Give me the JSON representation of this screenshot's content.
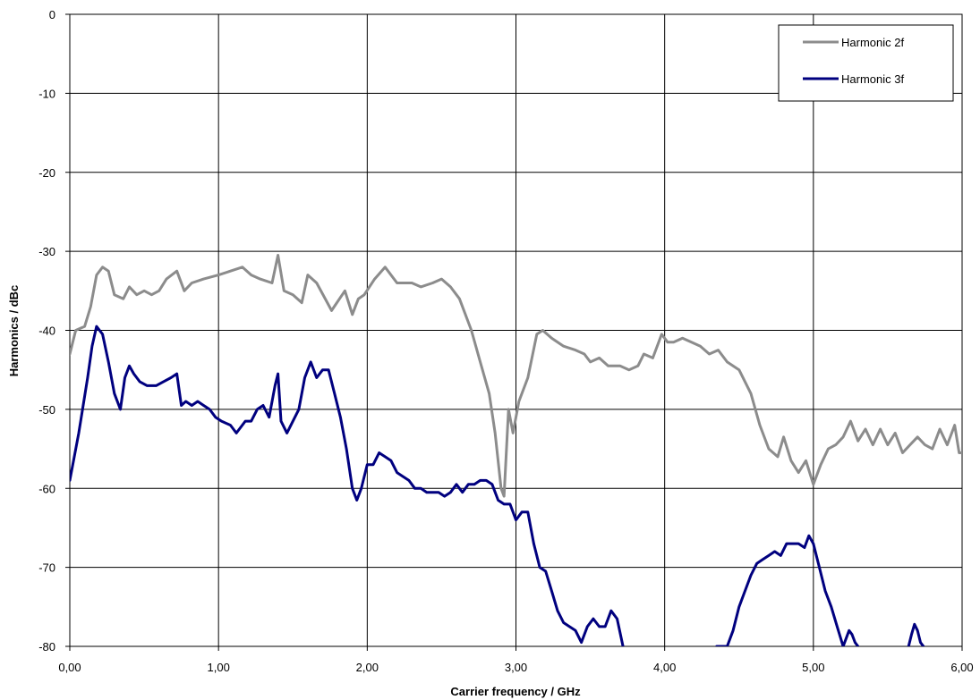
{
  "chart_data": {
    "type": "line",
    "xlabel": "Carrier frequency / GHz",
    "ylabel": "Harmonics / dBc",
    "xlim": [
      0,
      6
    ],
    "ylim": [
      -80,
      0
    ],
    "x_ticks": [
      "0,00",
      "1,00",
      "2,00",
      "3,00",
      "4,00",
      "5,00",
      "6,00"
    ],
    "y_ticks": [
      "0",
      "-10",
      "-20",
      "-30",
      "-40",
      "-50",
      "-60",
      "-70",
      "-80"
    ],
    "grid": true,
    "legend_position": "top-right",
    "series": [
      {
        "name": "Harmonic 2f",
        "color": "#8c8c8c",
        "x": [
          0,
          0.04,
          0.1,
          0.14,
          0.18,
          0.22,
          0.26,
          0.3,
          0.36,
          0.4,
          0.45,
          0.5,
          0.55,
          0.6,
          0.65,
          0.72,
          0.77,
          0.82,
          0.9,
          1.0,
          1.08,
          1.16,
          1.22,
          1.28,
          1.36,
          1.4,
          1.44,
          1.5,
          1.56,
          1.6,
          1.66,
          1.76,
          1.85,
          1.9,
          1.94,
          1.98,
          2.05,
          2.12,
          2.2,
          2.3,
          2.36,
          2.44,
          2.5,
          2.56,
          2.62,
          2.7,
          2.76,
          2.82,
          2.86,
          2.9,
          2.92,
          2.95,
          2.98,
          3.02,
          3.08,
          3.14,
          3.18,
          3.24,
          3.32,
          3.4,
          3.46,
          3.5,
          3.56,
          3.62,
          3.7,
          3.76,
          3.82,
          3.86,
          3.92,
          3.98,
          4.02,
          4.06,
          4.12,
          4.18,
          4.24,
          4.3,
          4.36,
          4.42,
          4.5,
          4.58,
          4.64,
          4.7,
          4.76,
          4.8,
          4.85,
          4.9,
          4.95,
          5.0,
          5.05,
          5.1,
          5.15,
          5.2,
          5.25,
          5.3,
          5.35,
          5.4,
          5.45,
          5.5,
          5.55,
          5.6,
          5.65,
          5.7,
          5.75,
          5.8,
          5.85,
          5.9,
          5.95,
          5.98,
          6.0
        ],
        "values": [
          -43,
          -40,
          -39.5,
          -37,
          -33,
          -32,
          -32.5,
          -35.5,
          -36,
          -34.5,
          -35.5,
          -35,
          -35.5,
          -35,
          -33.5,
          -32.5,
          -35,
          -34,
          -33.5,
          -33,
          -32.5,
          -32,
          -33,
          -33.5,
          -34,
          -30.5,
          -35,
          -35.5,
          -36.5,
          -33,
          -34,
          -37.5,
          -35,
          -38,
          -36,
          -35.5,
          -33.5,
          -32,
          -34,
          -34,
          -34.5,
          -34,
          -33.5,
          -34.5,
          -36,
          -40,
          -44,
          -48,
          -53,
          -60,
          -61,
          -50,
          -53,
          -49,
          -46,
          -40.5,
          -40,
          -41,
          -42,
          -42.5,
          -43,
          -44,
          -43.5,
          -44.5,
          -44.5,
          -45,
          -44.5,
          -43,
          -43.5,
          -40.5,
          -41.5,
          -41.5,
          -41,
          -41.5,
          -42,
          -43,
          -42.5,
          -44,
          -45,
          -48,
          -52,
          -55,
          -56,
          -53.5,
          -56.5,
          -58,
          -56.5,
          -59.5,
          -57,
          -55,
          -54.5,
          -53.5,
          -51.5,
          -54,
          -52.5,
          -54.5,
          -52.5,
          -54.5,
          -53,
          -55.5,
          -54.5,
          -53.5,
          -54.5,
          -55,
          -52.5,
          -54.5,
          -52,
          -55.5,
          -55.5
        ]
      },
      {
        "name": "Harmonic 3f",
        "color": "#00007f",
        "x": [
          0,
          0.06,
          0.12,
          0.15,
          0.18,
          0.22,
          0.26,
          0.3,
          0.34,
          0.37,
          0.4,
          0.43,
          0.47,
          0.52,
          0.58,
          0.63,
          0.68,
          0.72,
          0.75,
          0.78,
          0.82,
          0.86,
          0.9,
          0.94,
          0.98,
          1.02,
          1.08,
          1.12,
          1.18,
          1.22,
          1.26,
          1.3,
          1.34,
          1.38,
          1.4,
          1.42,
          1.46,
          1.5,
          1.54,
          1.58,
          1.62,
          1.66,
          1.7,
          1.74,
          1.78,
          1.82,
          1.86,
          1.9,
          1.93,
          1.96,
          2.0,
          2.04,
          2.08,
          2.12,
          2.16,
          2.2,
          2.24,
          2.28,
          2.32,
          2.36,
          2.4,
          2.44,
          2.48,
          2.52,
          2.56,
          2.6,
          2.64,
          2.68,
          2.72,
          2.76,
          2.8,
          2.84,
          2.88,
          2.92,
          2.96,
          3.0,
          3.04,
          3.08,
          3.12,
          3.16,
          3.2,
          3.24,
          3.28,
          3.32,
          3.36,
          3.4,
          3.44,
          3.48,
          3.52,
          3.56,
          3.6,
          3.64,
          3.68,
          3.72
        ],
        "values": [
          -59,
          -53,
          -46,
          -42,
          -39.5,
          -40.5,
          -44,
          -48,
          -50,
          -46,
          -44.5,
          -45.5,
          -46.5,
          -47,
          -47,
          -46.5,
          -46,
          -45.5,
          -49.5,
          -49,
          -49.5,
          -49,
          -49.5,
          -50,
          -51,
          -51.5,
          -52,
          -53,
          -51.5,
          -51.5,
          -50,
          -49.5,
          -51,
          -47,
          -45.5,
          -51.5,
          -53,
          -51.5,
          -50,
          -46,
          -44,
          -46,
          -45,
          -45,
          -48,
          -51,
          -55,
          -60,
          -61.5,
          -60,
          -57,
          -57,
          -55.5,
          -56,
          -56.5,
          -58,
          -58.5,
          -59,
          -60,
          -60,
          -60.5,
          -60.5,
          -60.5,
          -61,
          -60.5,
          -59.5,
          -60.5,
          -59.5,
          -59.5,
          -59,
          -59,
          -59.5,
          -61.5,
          -62,
          -62,
          -64,
          -63,
          -63,
          -67,
          -70,
          -70.5,
          -73,
          -75.5,
          -77,
          -77.5,
          -78,
          -79.5,
          -77.5,
          -76.5,
          -77.5,
          -77.5,
          -75.5,
          -76.5,
          -80
        ]
      },
      {
        "name": "Harmonic 3f",
        "color": "#00007f",
        "x": [
          4.35,
          4.38,
          4.42,
          4.46,
          4.5,
          4.54,
          4.58,
          4.62,
          4.66,
          4.7,
          4.74,
          4.78,
          4.82,
          4.86,
          4.9,
          4.94,
          4.97,
          5.0,
          5.04,
          5.08,
          5.12,
          5.16,
          5.2,
          5.22,
          5.24,
          5.26,
          5.28,
          5.3
        ],
        "values": [
          -80,
          -80,
          -80,
          -78,
          -75,
          -73,
          -71,
          -69.5,
          -69,
          -68.5,
          -68,
          -68.5,
          -67,
          -67,
          -67,
          -67.5,
          -66,
          -67,
          -70,
          -73,
          -75,
          -77.5,
          -80,
          -79,
          -78,
          -78.5,
          -79.5,
          -80
        ]
      },
      {
        "name": "Harmonic 3f",
        "color": "#00007f",
        "x": [
          5.64,
          5.66,
          5.68,
          5.7,
          5.72,
          5.74
        ],
        "values": [
          -80,
          -78.5,
          -77.2,
          -78,
          -79.5,
          -80
        ]
      }
    ]
  }
}
